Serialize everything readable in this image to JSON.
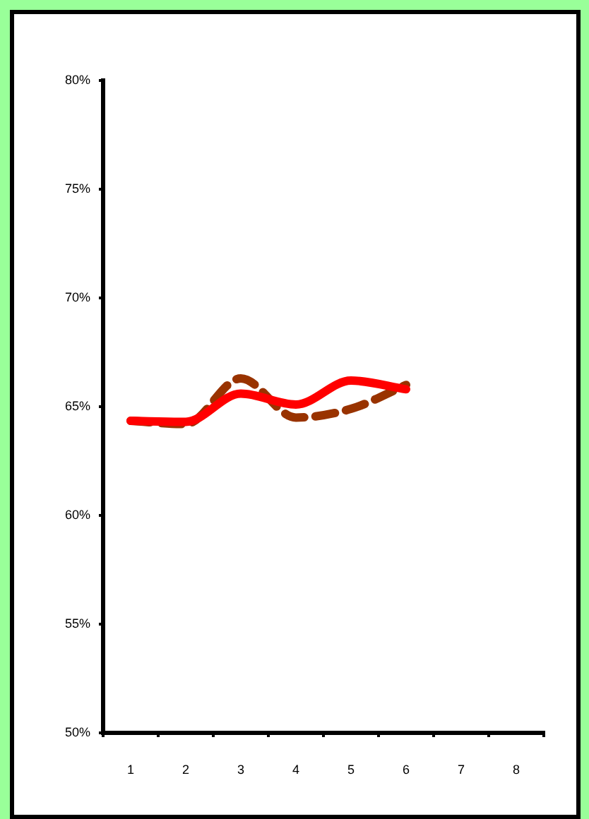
{
  "chart_data": {
    "type": "line",
    "categories": [
      "1",
      "2",
      "3",
      "4",
      "5",
      "6",
      "7",
      "8"
    ],
    "series": [
      {
        "color": "#ff0000",
        "line_style": "solid",
        "values": [
          64.35,
          64.3,
          65.6,
          65.1,
          66.2,
          65.8,
          null,
          null
        ]
      },
      {
        "color": "#993300",
        "line_style": "dashed",
        "values": [
          64.35,
          64.2,
          66.3,
          64.5,
          64.9,
          66.0,
          null,
          null
        ]
      }
    ],
    "ylim": [
      50,
      80
    ],
    "yticks": [
      {
        "value": 50,
        "label": "50%"
      },
      {
        "value": 55,
        "label": "55%"
      },
      {
        "value": 60,
        "label": "60%"
      },
      {
        "value": 65,
        "label": "65%"
      },
      {
        "value": 70,
        "label": "70%"
      },
      {
        "value": 75,
        "label": "75%"
      },
      {
        "value": 80,
        "label": "80%"
      }
    ],
    "grid": false,
    "legend": false,
    "marker": "none"
  }
}
